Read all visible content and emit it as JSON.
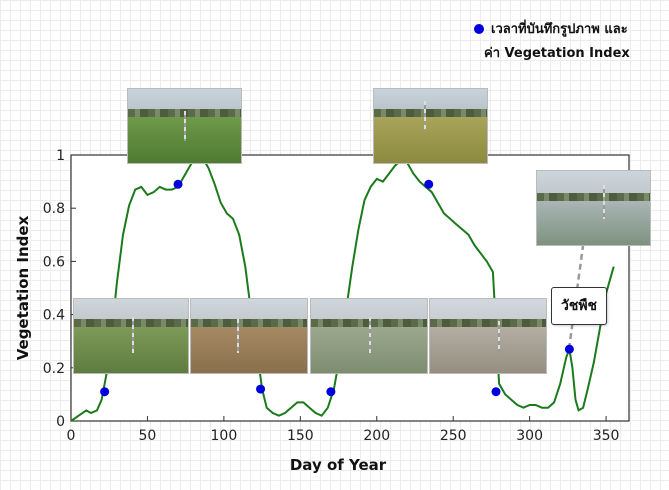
{
  "chart_data": {
    "type": "line",
    "xlabel": "Day of Year",
    "ylabel": "Vegetation Index",
    "xlim": [
      0,
      365
    ],
    "ylim": [
      0,
      1
    ],
    "xticks": [
      "0",
      "50",
      "100",
      "150",
      "200",
      "250",
      "300",
      "350"
    ],
    "yticks": [
      "0",
      "0.2",
      "0.4",
      "0.6",
      "0.8",
      "1"
    ],
    "series": [
      {
        "color": "#1b7a1b",
        "x": [
          0,
          5,
          10,
          13,
          17,
          20,
          24,
          27,
          30,
          34,
          38,
          42,
          46,
          50,
          54,
          58,
          62,
          66,
          70,
          74,
          78,
          82,
          86,
          90,
          94,
          98,
          102,
          106,
          110,
          114,
          118,
          122,
          125,
          128,
          132,
          136,
          140,
          144,
          148,
          152,
          156,
          160,
          164,
          168,
          172,
          176,
          180,
          184,
          188,
          192,
          196,
          200,
          204,
          208,
          212,
          216,
          220,
          224,
          228,
          232,
          236,
          240,
          244,
          248,
          252,
          256,
          260,
          264,
          268,
          272,
          276,
          280,
          284,
          288,
          292,
          296,
          300,
          304,
          308,
          312,
          316,
          320,
          324,
          326,
          328,
          330,
          332,
          335,
          338,
          342,
          346,
          350,
          355
        ],
        "y": [
          0,
          0.02,
          0.04,
          0.03,
          0.04,
          0.08,
          0.2,
          0.35,
          0.52,
          0.7,
          0.81,
          0.87,
          0.88,
          0.85,
          0.86,
          0.88,
          0.87,
          0.87,
          0.88,
          0.92,
          0.96,
          1.0,
          0.99,
          0.95,
          0.89,
          0.82,
          0.78,
          0.76,
          0.7,
          0.58,
          0.4,
          0.25,
          0.12,
          0.05,
          0.03,
          0.02,
          0.03,
          0.05,
          0.07,
          0.07,
          0.05,
          0.03,
          0.02,
          0.05,
          0.12,
          0.25,
          0.42,
          0.58,
          0.72,
          0.83,
          0.88,
          0.91,
          0.9,
          0.93,
          0.96,
          0.98,
          0.97,
          0.93,
          0.9,
          0.88,
          0.86,
          0.82,
          0.78,
          0.76,
          0.74,
          0.72,
          0.7,
          0.66,
          0.63,
          0.6,
          0.56,
          0.14,
          0.1,
          0.08,
          0.06,
          0.05,
          0.06,
          0.06,
          0.05,
          0.05,
          0.07,
          0.14,
          0.24,
          0.27,
          0.2,
          0.08,
          0.04,
          0.05,
          0.12,
          0.22,
          0.35,
          0.48,
          0.58
        ]
      }
    ],
    "photo_points": {
      "label": "เวลาที่บันทึกรูปภาพ และค่า Vegetation Index",
      "color": "#0000dd",
      "x": [
        22,
        70,
        124,
        170,
        234,
        278,
        326
      ],
      "y": [
        0.11,
        0.89,
        0.12,
        0.11,
        0.89,
        0.11,
        0.27
      ]
    },
    "legend": {
      "position": "top-right",
      "line1": "เวลาที่บันทึกรูปภาพ และ",
      "line2": "ค่า Vegetation Index"
    },
    "annotation": "วัชพืช",
    "grid": false
  }
}
